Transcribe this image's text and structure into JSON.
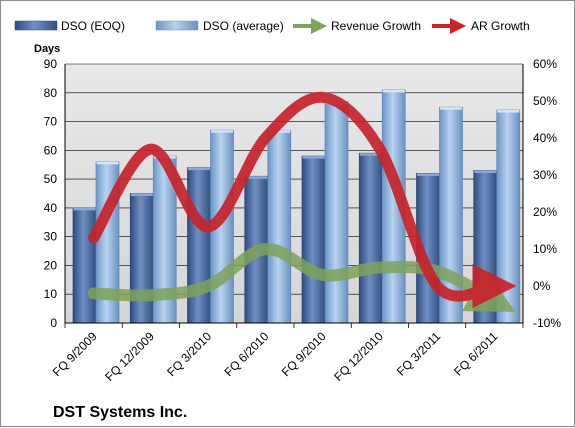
{
  "chart_data": {
    "type": "bar",
    "title": "",
    "footer_title": "DST Systems Inc.",
    "ylabel": "Days",
    "ylim": [
      0,
      90
    ],
    "y_ticks": [
      0,
      10,
      20,
      30,
      40,
      50,
      60,
      70,
      80,
      90
    ],
    "y2lim": [
      -10,
      60
    ],
    "y2_ticks": [
      "-10%",
      "0%",
      "10%",
      "20%",
      "30%",
      "40%",
      "50%",
      "60%"
    ],
    "y2_tick_values": [
      -10,
      0,
      10,
      20,
      30,
      40,
      50,
      60
    ],
    "categories": [
      "FQ 9/2009",
      "FQ 12/2009",
      "FQ 3/2010",
      "FQ 6/2010",
      "FQ 9/2010",
      "FQ 12/2010",
      "FQ 3/2011",
      "FQ 6/2011"
    ],
    "bar_series": [
      {
        "name": "DSO (EOQ)",
        "color": "#4f6fa7",
        "values": [
          40,
          45,
          54,
          51,
          58,
          59,
          52,
          53
        ]
      },
      {
        "name": "DSO (average)",
        "color": "#8fb3df",
        "values": [
          56,
          58,
          67,
          67,
          77,
          81,
          75,
          74
        ]
      }
    ],
    "line_series": [
      {
        "name": "Revenue Growth",
        "color": "#7ea35a",
        "values": [
          -2,
          -2.5,
          0,
          10,
          3,
          5,
          4,
          -4
        ]
      },
      {
        "name": "AR Growth",
        "color": "#c8232b",
        "values": [
          13,
          37,
          16,
          40,
          51,
          37,
          0,
          0
        ]
      }
    ],
    "grid": true,
    "legend_position": "top"
  }
}
